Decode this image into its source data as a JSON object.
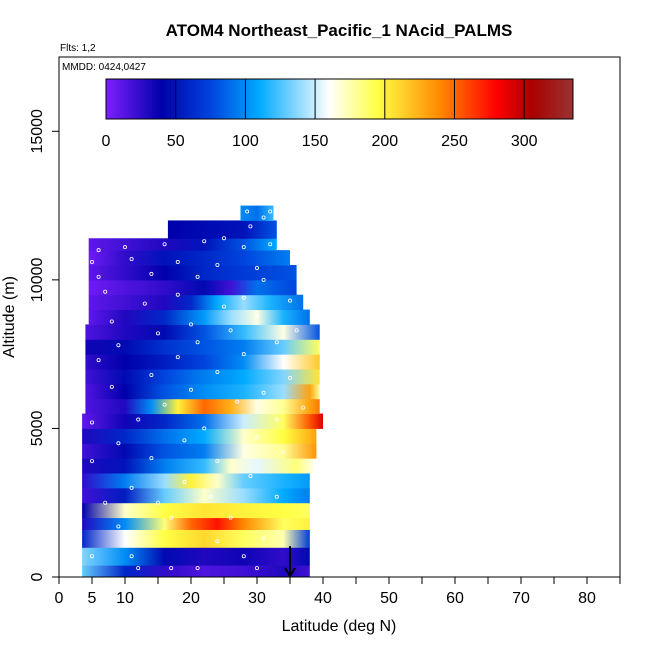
{
  "header": {
    "flights_label": "Flts: 1,2",
    "mmdd_label": "MMDD: 0424,0427"
  },
  "chart_data": {
    "type": "heatmap",
    "title": "ATOM4 Northeast_Pacific_1 NAcid_PALMS",
    "xlabel": "Latitude (deg N)",
    "ylabel": "Altitude (m)",
    "xlim": [
      0,
      85
    ],
    "ylim": [
      0,
      17500
    ],
    "x_ticks": [
      0,
      5,
      10,
      20,
      30,
      40,
      50,
      60,
      70,
      80
    ],
    "x_minor_ticks": [
      15,
      25,
      35,
      45,
      55,
      65,
      75,
      85
    ],
    "y_ticks": [
      0,
      5000,
      10000,
      15000
    ],
    "grid": false,
    "colorbar": {
      "placement": "top-inside",
      "range": [
        0,
        335
      ],
      "ticks": [
        0,
        50,
        100,
        150,
        200,
        250,
        300
      ],
      "stops": [
        "#7f1fff",
        "#0000aa",
        "#0044dd",
        "#00aaff",
        "#ffffff",
        "#ffff44",
        "#ff8800",
        "#ff0000",
        "#aa0000",
        "#993333"
      ],
      "stop_values": [
        0,
        40,
        75,
        110,
        160,
        195,
        240,
        280,
        305,
        335
      ]
    },
    "arrow_marker": {
      "x": 35,
      "y_top": 700,
      "y_bottom": 0
    },
    "bands": [
      {
        "y0": 0,
        "y1": 400,
        "x0": 3.5,
        "x1": 38,
        "stops": [
          [
            3.5,
            130
          ],
          [
            10,
            60
          ],
          [
            16,
            25
          ],
          [
            22,
            15
          ],
          [
            28,
            20
          ],
          [
            34,
            30
          ],
          [
            38,
            20
          ]
        ]
      },
      {
        "y0": 400,
        "y1": 1000,
        "x0": 3.5,
        "x1": 38,
        "stops": [
          [
            3.5,
            135
          ],
          [
            10,
            100
          ],
          [
            16,
            45
          ],
          [
            22,
            30
          ],
          [
            28,
            35
          ],
          [
            34,
            25
          ],
          [
            38,
            45
          ]
        ]
      },
      {
        "y0": 1000,
        "y1": 1600,
        "x0": 3.5,
        "x1": 38,
        "stops": [
          [
            3.5,
            60
          ],
          [
            10,
            160
          ],
          [
            16,
            195
          ],
          [
            22,
            210
          ],
          [
            28,
            190
          ],
          [
            34,
            175
          ],
          [
            38,
            70
          ]
        ]
      },
      {
        "y0": 1600,
        "y1": 2000,
        "x0": 3.5,
        "x1": 38,
        "stops": [
          [
            3.5,
            30
          ],
          [
            10,
            100
          ],
          [
            16,
            185
          ],
          [
            20,
            250
          ],
          [
            24,
            275
          ],
          [
            28,
            240
          ],
          [
            34,
            190
          ],
          [
            38,
            200
          ]
        ]
      },
      {
        "y0": 2000,
        "y1": 2500,
        "x0": 3.5,
        "x1": 38,
        "stops": [
          [
            3.5,
            40
          ],
          [
            10,
            170
          ],
          [
            16,
            195
          ],
          [
            22,
            205
          ],
          [
            28,
            200
          ],
          [
            34,
            195
          ],
          [
            38,
            190
          ]
        ]
      },
      {
        "y0": 2500,
        "y1": 3000,
        "x0": 3.5,
        "x1": 38,
        "stops": [
          [
            3.5,
            20
          ],
          [
            10,
            55
          ],
          [
            16,
            130
          ],
          [
            22,
            170
          ],
          [
            28,
            140
          ],
          [
            34,
            110
          ],
          [
            38,
            95
          ]
        ]
      },
      {
        "y0": 3000,
        "y1": 3500,
        "x0": 3.5,
        "x1": 38,
        "stops": [
          [
            3.5,
            25
          ],
          [
            10,
            95
          ],
          [
            16,
            140
          ],
          [
            20,
            200
          ],
          [
            24,
            170
          ],
          [
            28,
            130
          ],
          [
            34,
            115
          ],
          [
            38,
            105
          ]
        ]
      },
      {
        "y0": 3500,
        "y1": 4000,
        "x0": 3.5,
        "x1": 38.5,
        "stops": [
          [
            3.5,
            30
          ],
          [
            10,
            50
          ],
          [
            16,
            95
          ],
          [
            22,
            120
          ],
          [
            26,
            170
          ],
          [
            30,
            155
          ],
          [
            36,
            185
          ],
          [
            38.5,
            165
          ]
        ]
      },
      {
        "y0": 4000,
        "y1": 4500,
        "x0": 3.5,
        "x1": 39,
        "stops": [
          [
            3.5,
            20
          ],
          [
            10,
            45
          ],
          [
            16,
            80
          ],
          [
            22,
            95
          ],
          [
            28,
            165
          ],
          [
            34,
            180
          ],
          [
            39,
            235
          ]
        ]
      },
      {
        "y0": 4500,
        "y1": 5000,
        "x0": 3.5,
        "x1": 39,
        "stops": [
          [
            3.5,
            30
          ],
          [
            10,
            60
          ],
          [
            16,
            90
          ],
          [
            22,
            110
          ],
          [
            28,
            170
          ],
          [
            34,
            195
          ],
          [
            39,
            230
          ]
        ]
      },
      {
        "y0": 5000,
        "y1": 5500,
        "x0": 3.5,
        "x1": 40,
        "stops": [
          [
            3.5,
            10
          ],
          [
            10,
            35
          ],
          [
            16,
            60
          ],
          [
            22,
            90
          ],
          [
            28,
            150
          ],
          [
            34,
            190
          ],
          [
            38,
            255
          ],
          [
            40,
            290
          ]
        ]
      },
      {
        "y0": 5500,
        "y1": 6000,
        "x0": 4,
        "x1": 39.5,
        "stops": [
          [
            4,
            15
          ],
          [
            10,
            30
          ],
          [
            14,
            100
          ],
          [
            18,
            200
          ],
          [
            22,
            250
          ],
          [
            26,
            225
          ],
          [
            30,
            165
          ],
          [
            34,
            180
          ],
          [
            38,
            230
          ],
          [
            39.5,
            245
          ]
        ]
      },
      {
        "y0": 6000,
        "y1": 6500,
        "x0": 4,
        "x1": 39.5,
        "stops": [
          [
            4,
            15
          ],
          [
            10,
            40
          ],
          [
            16,
            80
          ],
          [
            22,
            100
          ],
          [
            28,
            115
          ],
          [
            34,
            140
          ],
          [
            38,
            230
          ],
          [
            39.5,
            180
          ]
        ]
      },
      {
        "y0": 6500,
        "y1": 7000,
        "x0": 4,
        "x1": 39.5,
        "stops": [
          [
            4,
            20
          ],
          [
            10,
            45
          ],
          [
            16,
            75
          ],
          [
            22,
            95
          ],
          [
            28,
            110
          ],
          [
            34,
            135
          ],
          [
            39.5,
            205
          ]
        ]
      },
      {
        "y0": 7000,
        "y1": 7500,
        "x0": 4,
        "x1": 39.5,
        "stops": [
          [
            4,
            25
          ],
          [
            10,
            40
          ],
          [
            16,
            55
          ],
          [
            22,
            75
          ],
          [
            28,
            100
          ],
          [
            34,
            160
          ],
          [
            39.5,
            215
          ]
        ]
      },
      {
        "y0": 7500,
        "y1": 8000,
        "x0": 4,
        "x1": 39.5,
        "stops": [
          [
            4,
            35
          ],
          [
            10,
            45
          ],
          [
            16,
            65
          ],
          [
            22,
            80
          ],
          [
            28,
            95
          ],
          [
            34,
            130
          ],
          [
            39.5,
            190
          ]
        ]
      },
      {
        "y0": 8000,
        "y1": 8500,
        "x0": 4,
        "x1": 39.5,
        "stops": [
          [
            4,
            15
          ],
          [
            10,
            30
          ],
          [
            16,
            45
          ],
          [
            22,
            80
          ],
          [
            28,
            120
          ],
          [
            34,
            165
          ],
          [
            39.5,
            80
          ]
        ]
      },
      {
        "y0": 8500,
        "y1": 9000,
        "x0": 4.5,
        "x1": 38,
        "stops": [
          [
            4.5,
            10
          ],
          [
            10,
            30
          ],
          [
            16,
            60
          ],
          [
            22,
            105
          ],
          [
            26,
            140
          ],
          [
            30,
            165
          ],
          [
            34,
            115
          ],
          [
            38,
            90
          ]
        ]
      },
      {
        "y0": 9000,
        "y1": 9500,
        "x0": 4.5,
        "x1": 37,
        "stops": [
          [
            4.5,
            10
          ],
          [
            10,
            20
          ],
          [
            16,
            30
          ],
          [
            20,
            60
          ],
          [
            24,
            110
          ],
          [
            28,
            140
          ],
          [
            32,
            115
          ],
          [
            37,
            90
          ]
        ]
      },
      {
        "y0": 9500,
        "y1": 10000,
        "x0": 4.5,
        "x1": 36,
        "stops": [
          [
            4.5,
            5
          ],
          [
            10,
            15
          ],
          [
            16,
            25
          ],
          [
            22,
            45
          ],
          [
            26,
            20
          ],
          [
            30,
            90
          ],
          [
            36,
            75
          ]
        ]
      },
      {
        "y0": 10000,
        "y1": 10500,
        "x0": 4.5,
        "x1": 36,
        "stops": [
          [
            4.5,
            10
          ],
          [
            10,
            25
          ],
          [
            16,
            40
          ],
          [
            22,
            60
          ],
          [
            28,
            70
          ],
          [
            36,
            80
          ]
        ]
      },
      {
        "y0": 10500,
        "y1": 11000,
        "x0": 4.5,
        "x1": 35,
        "stops": [
          [
            4.5,
            5
          ],
          [
            10,
            25
          ],
          [
            16,
            50
          ],
          [
            22,
            60
          ],
          [
            28,
            75
          ],
          [
            35,
            95
          ]
        ]
      },
      {
        "y0": 11000,
        "y1": 11400,
        "x0": 4.5,
        "x1": 33,
        "stops": [
          [
            4.5,
            10
          ],
          [
            10,
            20
          ],
          [
            16,
            30
          ],
          [
            22,
            50
          ],
          [
            28,
            80
          ],
          [
            33,
            110
          ]
        ]
      },
      {
        "y0": 11400,
        "y1": 12000,
        "x0": 16.5,
        "x1": 33,
        "stops": [
          [
            16.5,
            40
          ],
          [
            22,
            45
          ],
          [
            28,
            50
          ],
          [
            33,
            80
          ]
        ]
      },
      {
        "y0": 12000,
        "y1": 12500,
        "x0": 27.5,
        "x1": 32.5,
        "stops": [
          [
            27.5,
            100
          ],
          [
            30,
            90
          ],
          [
            32.5,
            120
          ]
        ]
      }
    ],
    "points": [
      [
        12,
        300
      ],
      [
        17,
        300
      ],
      [
        21,
        300
      ],
      [
        30,
        300
      ],
      [
        5,
        700
      ],
      [
        11,
        700
      ],
      [
        28,
        700
      ],
      [
        24,
        1200
      ],
      [
        31,
        1300
      ],
      [
        9,
        1700
      ],
      [
        17,
        2000
      ],
      [
        26,
        2000
      ],
      [
        7,
        2500
      ],
      [
        15,
        2500
      ],
      [
        23,
        2700
      ],
      [
        33,
        2700
      ],
      [
        11,
        3000
      ],
      [
        19,
        3200
      ],
      [
        29,
        3400
      ],
      [
        5,
        3900
      ],
      [
        14,
        4000
      ],
      [
        24,
        3900
      ],
      [
        34,
        4200
      ],
      [
        9,
        4500
      ],
      [
        19,
        4600
      ],
      [
        30,
        4700
      ],
      [
        5,
        5200
      ],
      [
        12,
        5300
      ],
      [
        22,
        5000
      ],
      [
        33,
        5300
      ],
      [
        16,
        5800
      ],
      [
        27,
        5900
      ],
      [
        37,
        5700
      ],
      [
        8,
        6400
      ],
      [
        20,
        6300
      ],
      [
        31,
        6200
      ],
      [
        14,
        6800
      ],
      [
        24,
        6900
      ],
      [
        35,
        6700
      ],
      [
        6,
        7300
      ],
      [
        18,
        7400
      ],
      [
        28,
        7500
      ],
      [
        9,
        7800
      ],
      [
        21,
        7900
      ],
      [
        33,
        7900
      ],
      [
        15,
        8200
      ],
      [
        26,
        8300
      ],
      [
        36,
        8300
      ],
      [
        8,
        8600
      ],
      [
        20,
        8500
      ],
      [
        30,
        8800
      ],
      [
        13,
        9200
      ],
      [
        25,
        9100
      ],
      [
        35,
        9300
      ],
      [
        7,
        9600
      ],
      [
        18,
        9500
      ],
      [
        28,
        9400
      ],
      [
        6,
        10100
      ],
      [
        14,
        10200
      ],
      [
        21,
        10100
      ],
      [
        31,
        10000
      ],
      [
        5,
        10600
      ],
      [
        11,
        10700
      ],
      [
        18,
        10600
      ],
      [
        24,
        10500
      ],
      [
        30,
        10400
      ],
      [
        6,
        11000
      ],
      [
        10,
        11100
      ],
      [
        16,
        11200
      ],
      [
        22,
        11300
      ],
      [
        28,
        11100
      ],
      [
        32,
        11200
      ],
      [
        25,
        11400
      ],
      [
        29,
        11800
      ],
      [
        31,
        12100
      ],
      [
        28.5,
        12300
      ],
      [
        32,
        12300
      ]
    ]
  }
}
